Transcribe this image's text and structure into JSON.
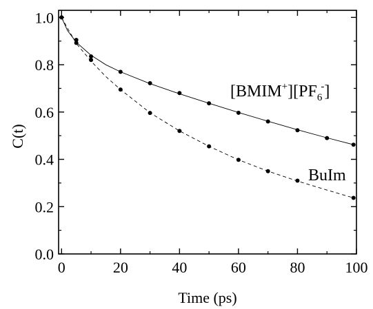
{
  "chart_data": {
    "type": "line",
    "xlabel": "Time (ps)",
    "ylabel": "C(t)",
    "xlim": [
      -1,
      100
    ],
    "ylim": [
      0,
      1.03
    ],
    "x_ticks": [
      0,
      20,
      40,
      60,
      80,
      100
    ],
    "x_tick_labels": [
      "0",
      "20",
      "40",
      "60",
      "80",
      "100"
    ],
    "y_ticks": [
      0.0,
      0.2,
      0.4,
      0.6,
      0.8,
      1.0
    ],
    "y_tick_labels": [
      "0.0",
      "0.2",
      "0.4",
      "0.6",
      "0.8",
      "1.0"
    ],
    "grid": false,
    "series": [
      {
        "name": "[BMIM+][PF6-]",
        "label_parts": {
          "a": "[BMIM",
          "sup": "+",
          "b": "][PF",
          "sub": "6",
          "sup2": "-",
          "c": "]"
        },
        "line_style": "solid",
        "points": {
          "x": [
            0,
            5,
            10,
            20,
            30,
            40,
            50,
            60,
            70,
            80,
            90,
            99
          ],
          "y": [
            1.0,
            0.905,
            0.835,
            0.77,
            0.722,
            0.68,
            0.637,
            0.597,
            0.56,
            0.523,
            0.49,
            0.462
          ]
        },
        "fit": {
          "x": [
            0,
            2,
            5,
            10,
            15,
            20,
            30,
            40,
            50,
            60,
            70,
            80,
            90,
            99
          ],
          "y": [
            1.0,
            0.945,
            0.895,
            0.84,
            0.8,
            0.77,
            0.72,
            0.677,
            0.637,
            0.598,
            0.561,
            0.525,
            0.491,
            0.462
          ]
        }
      },
      {
        "name": "BuIm",
        "line_style": "dashed",
        "points": {
          "x": [
            0,
            5,
            10,
            20,
            30,
            40,
            50,
            60,
            70,
            80,
            99
          ],
          "y": [
            1.0,
            0.892,
            0.82,
            0.695,
            0.596,
            0.52,
            0.455,
            0.398,
            0.35,
            0.31,
            0.237
          ]
        },
        "fit": {
          "x": [
            0,
            2,
            5,
            10,
            15,
            20,
            30,
            40,
            50,
            60,
            70,
            80,
            90,
            99
          ],
          "y": [
            1.0,
            0.955,
            0.89,
            0.815,
            0.75,
            0.695,
            0.597,
            0.52,
            0.455,
            0.398,
            0.35,
            0.308,
            0.27,
            0.237
          ]
        }
      }
    ]
  }
}
